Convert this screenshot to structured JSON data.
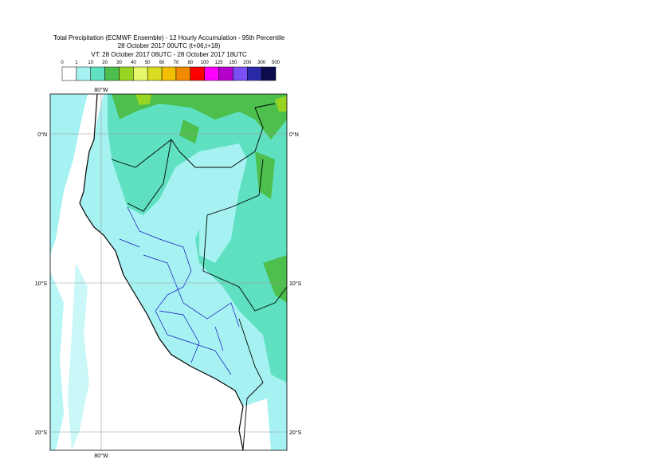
{
  "title": [
    "Total Precipitation (ECMWF Ensemble) - 12 Hourly Accumulation - 95th Percentile",
    "28 October 2017 00UTC (t+06,t+18)",
    "VT: 28 October 2017 06UTC - 28 October 2017 18UTC"
  ],
  "legend": {
    "bounds": [
      0,
      1,
      10,
      20,
      30,
      40,
      50,
      60,
      70,
      80,
      100,
      125,
      150,
      200,
      300,
      500
    ],
    "colors": [
      "#ffffff",
      "#a6f2f2",
      "#5fe0c0",
      "#4cbf4c",
      "#98d422",
      "#e6f76a",
      "#d8dc22",
      "#f2c000",
      "#f28a00",
      "#ff0000",
      "#ff00ff",
      "#b400c8",
      "#7a50f5",
      "#2a2aa8",
      "#0c0c4c"
    ]
  },
  "map": {
    "lon_labels": [
      "80°W"
    ],
    "lat_labels": [
      "0°N",
      "10°S",
      "20°S"
    ]
  }
}
